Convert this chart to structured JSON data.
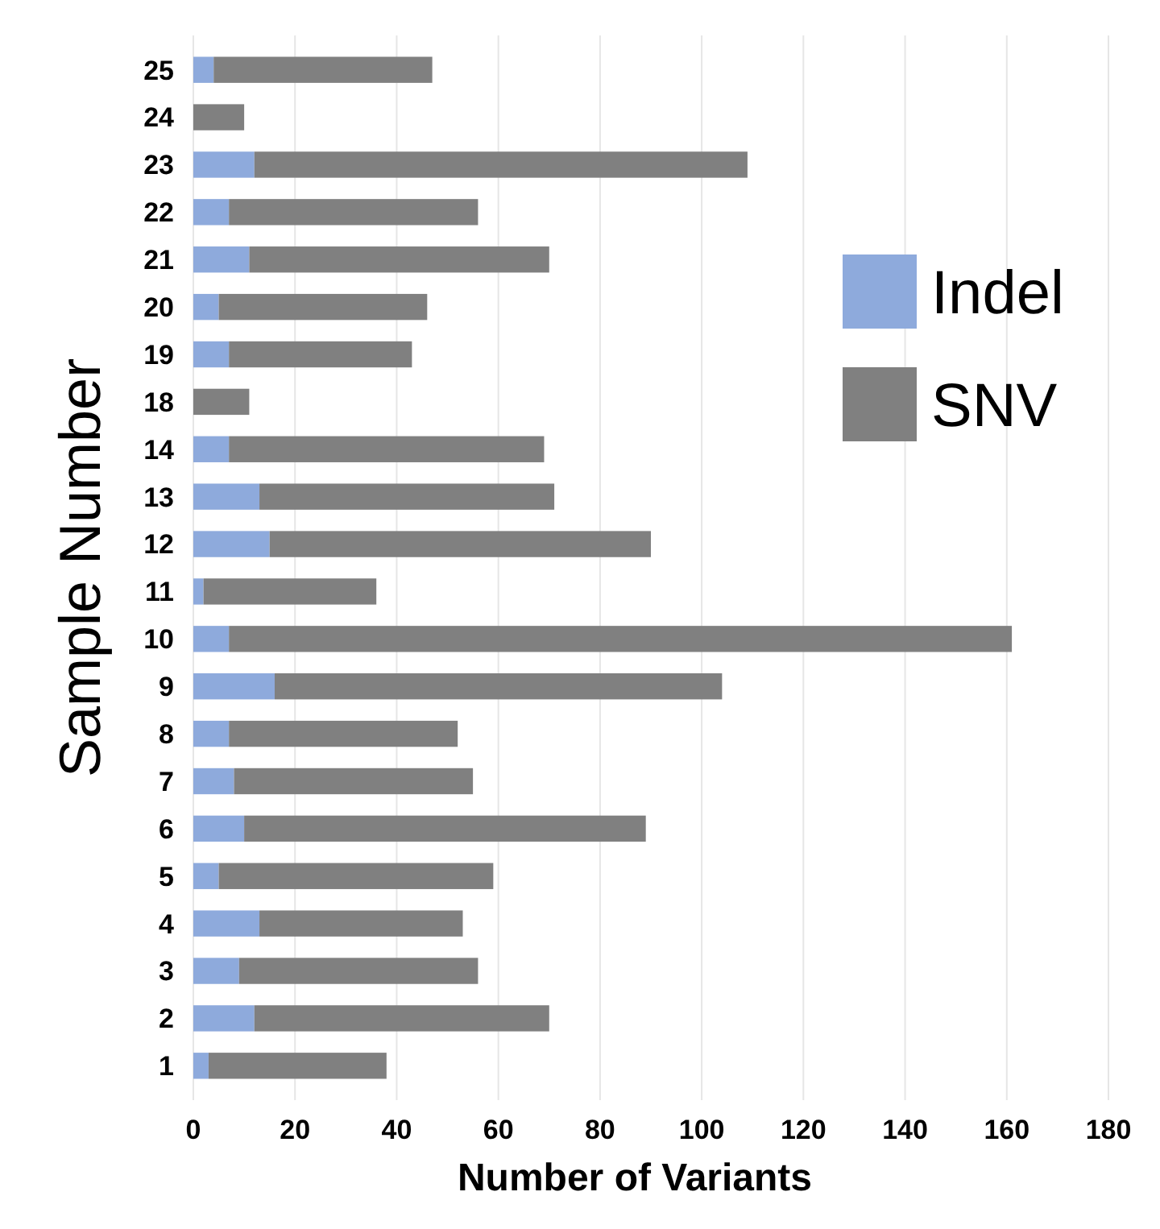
{
  "chart_data": {
    "type": "bar",
    "orientation": "horizontal",
    "stacked": true,
    "xlabel": "Number of Variants",
    "ylabel": "Sample Number",
    "categories": [
      "25",
      "24",
      "23",
      "22",
      "21",
      "20",
      "19",
      "18",
      "14",
      "13",
      "12",
      "11",
      "10",
      "9",
      "8",
      "7",
      "6",
      "5",
      "4",
      "3",
      "2",
      "1"
    ],
    "series": [
      {
        "name": "Indel",
        "color": "#8eaadc",
        "values": [
          4,
          0,
          12,
          7,
          11,
          5,
          7,
          0,
          7,
          13,
          15,
          2,
          7,
          16,
          7,
          8,
          10,
          5,
          13,
          9,
          12,
          3
        ]
      },
      {
        "name": "SNV",
        "color": "#808080",
        "values": [
          43,
          10,
          97,
          49,
          59,
          41,
          36,
          11,
          62,
          58,
          75,
          34,
          154,
          88,
          45,
          47,
          79,
          54,
          40,
          47,
          58,
          35
        ]
      }
    ],
    "xlim": [
      0,
      180
    ],
    "xticks": [
      0,
      20,
      40,
      60,
      80,
      100,
      120,
      140,
      160,
      180
    ],
    "grid": "x",
    "legend": "right"
  }
}
